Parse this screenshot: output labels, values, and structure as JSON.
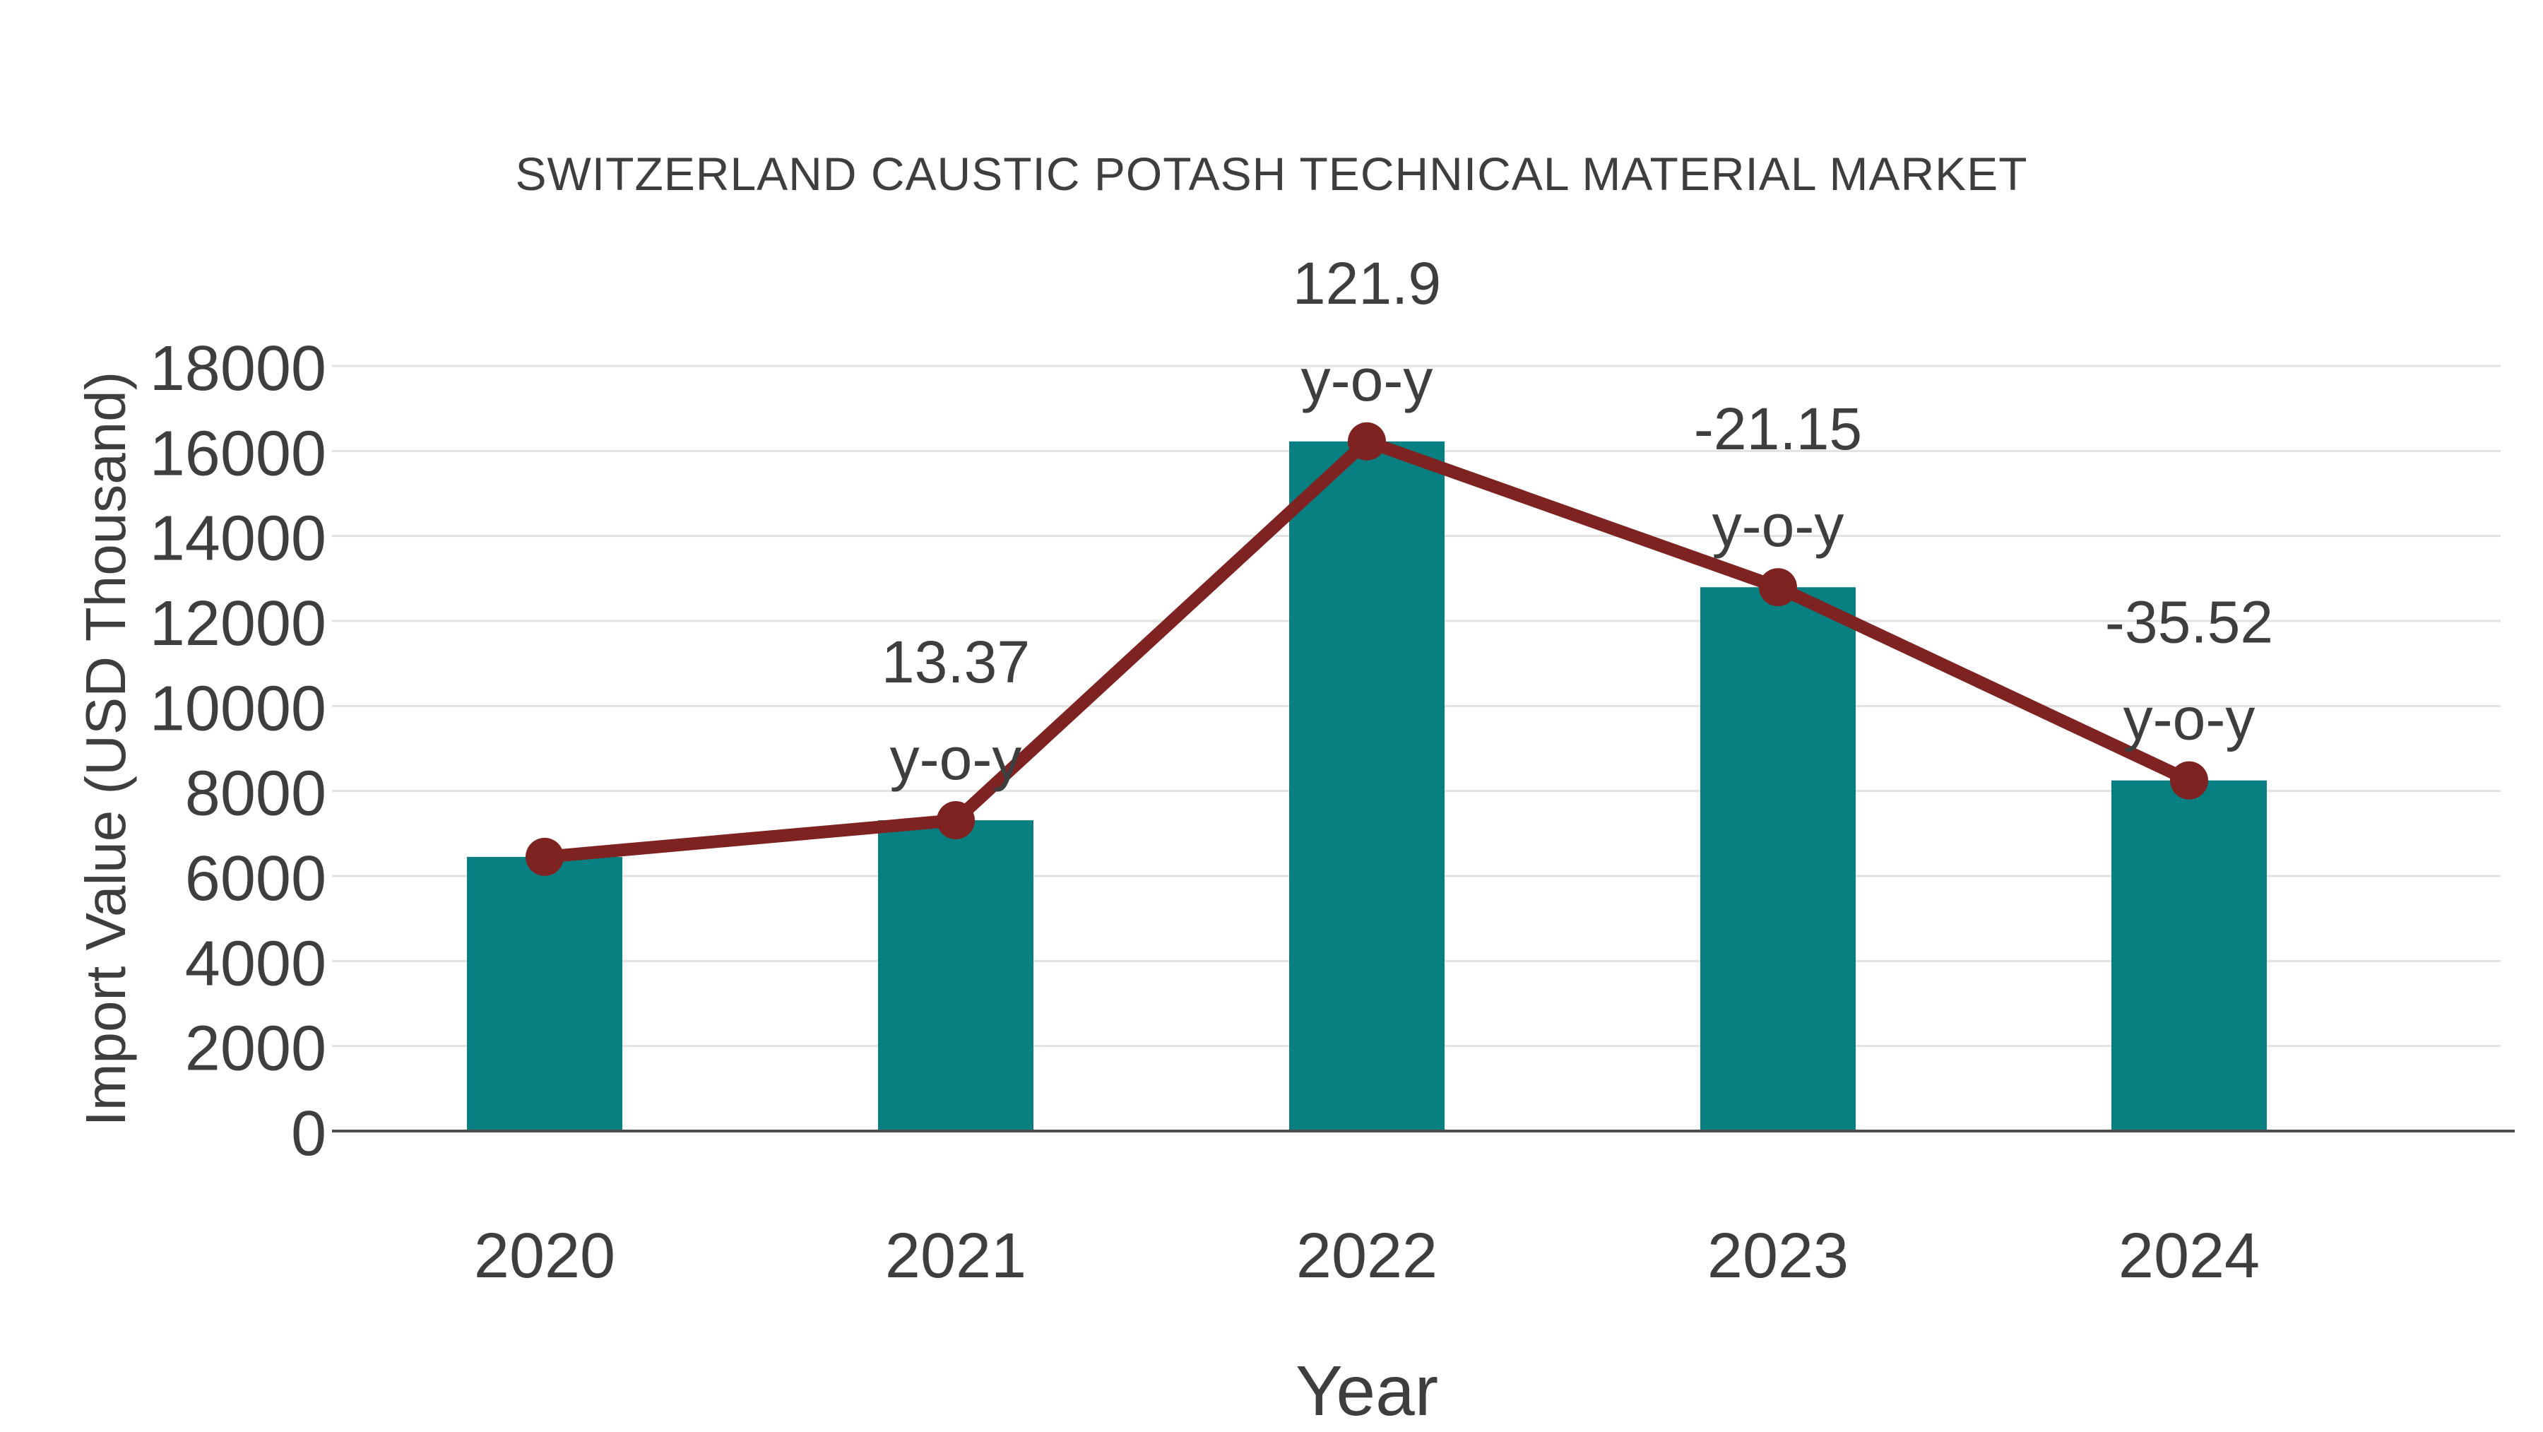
{
  "chart_data": {
    "type": "bar",
    "title": "SWITZERLAND CAUSTIC POTASH TECHNICAL MATERIAL MARKET",
    "xlabel": "Year",
    "ylabel": "Import Value (USD Thousand)",
    "categories": [
      "2020",
      "2021",
      "2022",
      "2023",
      "2024"
    ],
    "series": [
      {
        "name": "Import Value (USD Thousand)",
        "type": "bar",
        "values": [
          6450,
          7312,
          16225,
          12794,
          8249
        ]
      },
      {
        "name": "Year-over-year trend",
        "type": "line",
        "values": [
          6450,
          7312,
          16225,
          12794,
          8249
        ]
      }
    ],
    "annotations": [
      {
        "category": "2021",
        "index": 1,
        "lines": [
          "13.37",
          "y-o-y"
        ]
      },
      {
        "category": "2022",
        "index": 2,
        "lines": [
          "121.9",
          "y-o-y"
        ]
      },
      {
        "category": "2023",
        "index": 3,
        "lines": [
          "-21.15",
          "y-o-y"
        ]
      },
      {
        "category": "2024",
        "index": 4,
        "lines": [
          "-35.52",
          "y-o-y"
        ]
      }
    ],
    "y_ticks": [
      0,
      2000,
      4000,
      6000,
      8000,
      10000,
      12000,
      14000,
      16000,
      18000
    ],
    "ylim": [
      0,
      18000
    ],
    "grid": "horizontal",
    "legend": "none",
    "colors": {
      "bar": "#088081",
      "line": "#7E2222",
      "text": "#3E3E3E",
      "grid": "#E2E2E2",
      "axis": "#4D4D4D",
      "background": "#FFFFFF"
    }
  }
}
